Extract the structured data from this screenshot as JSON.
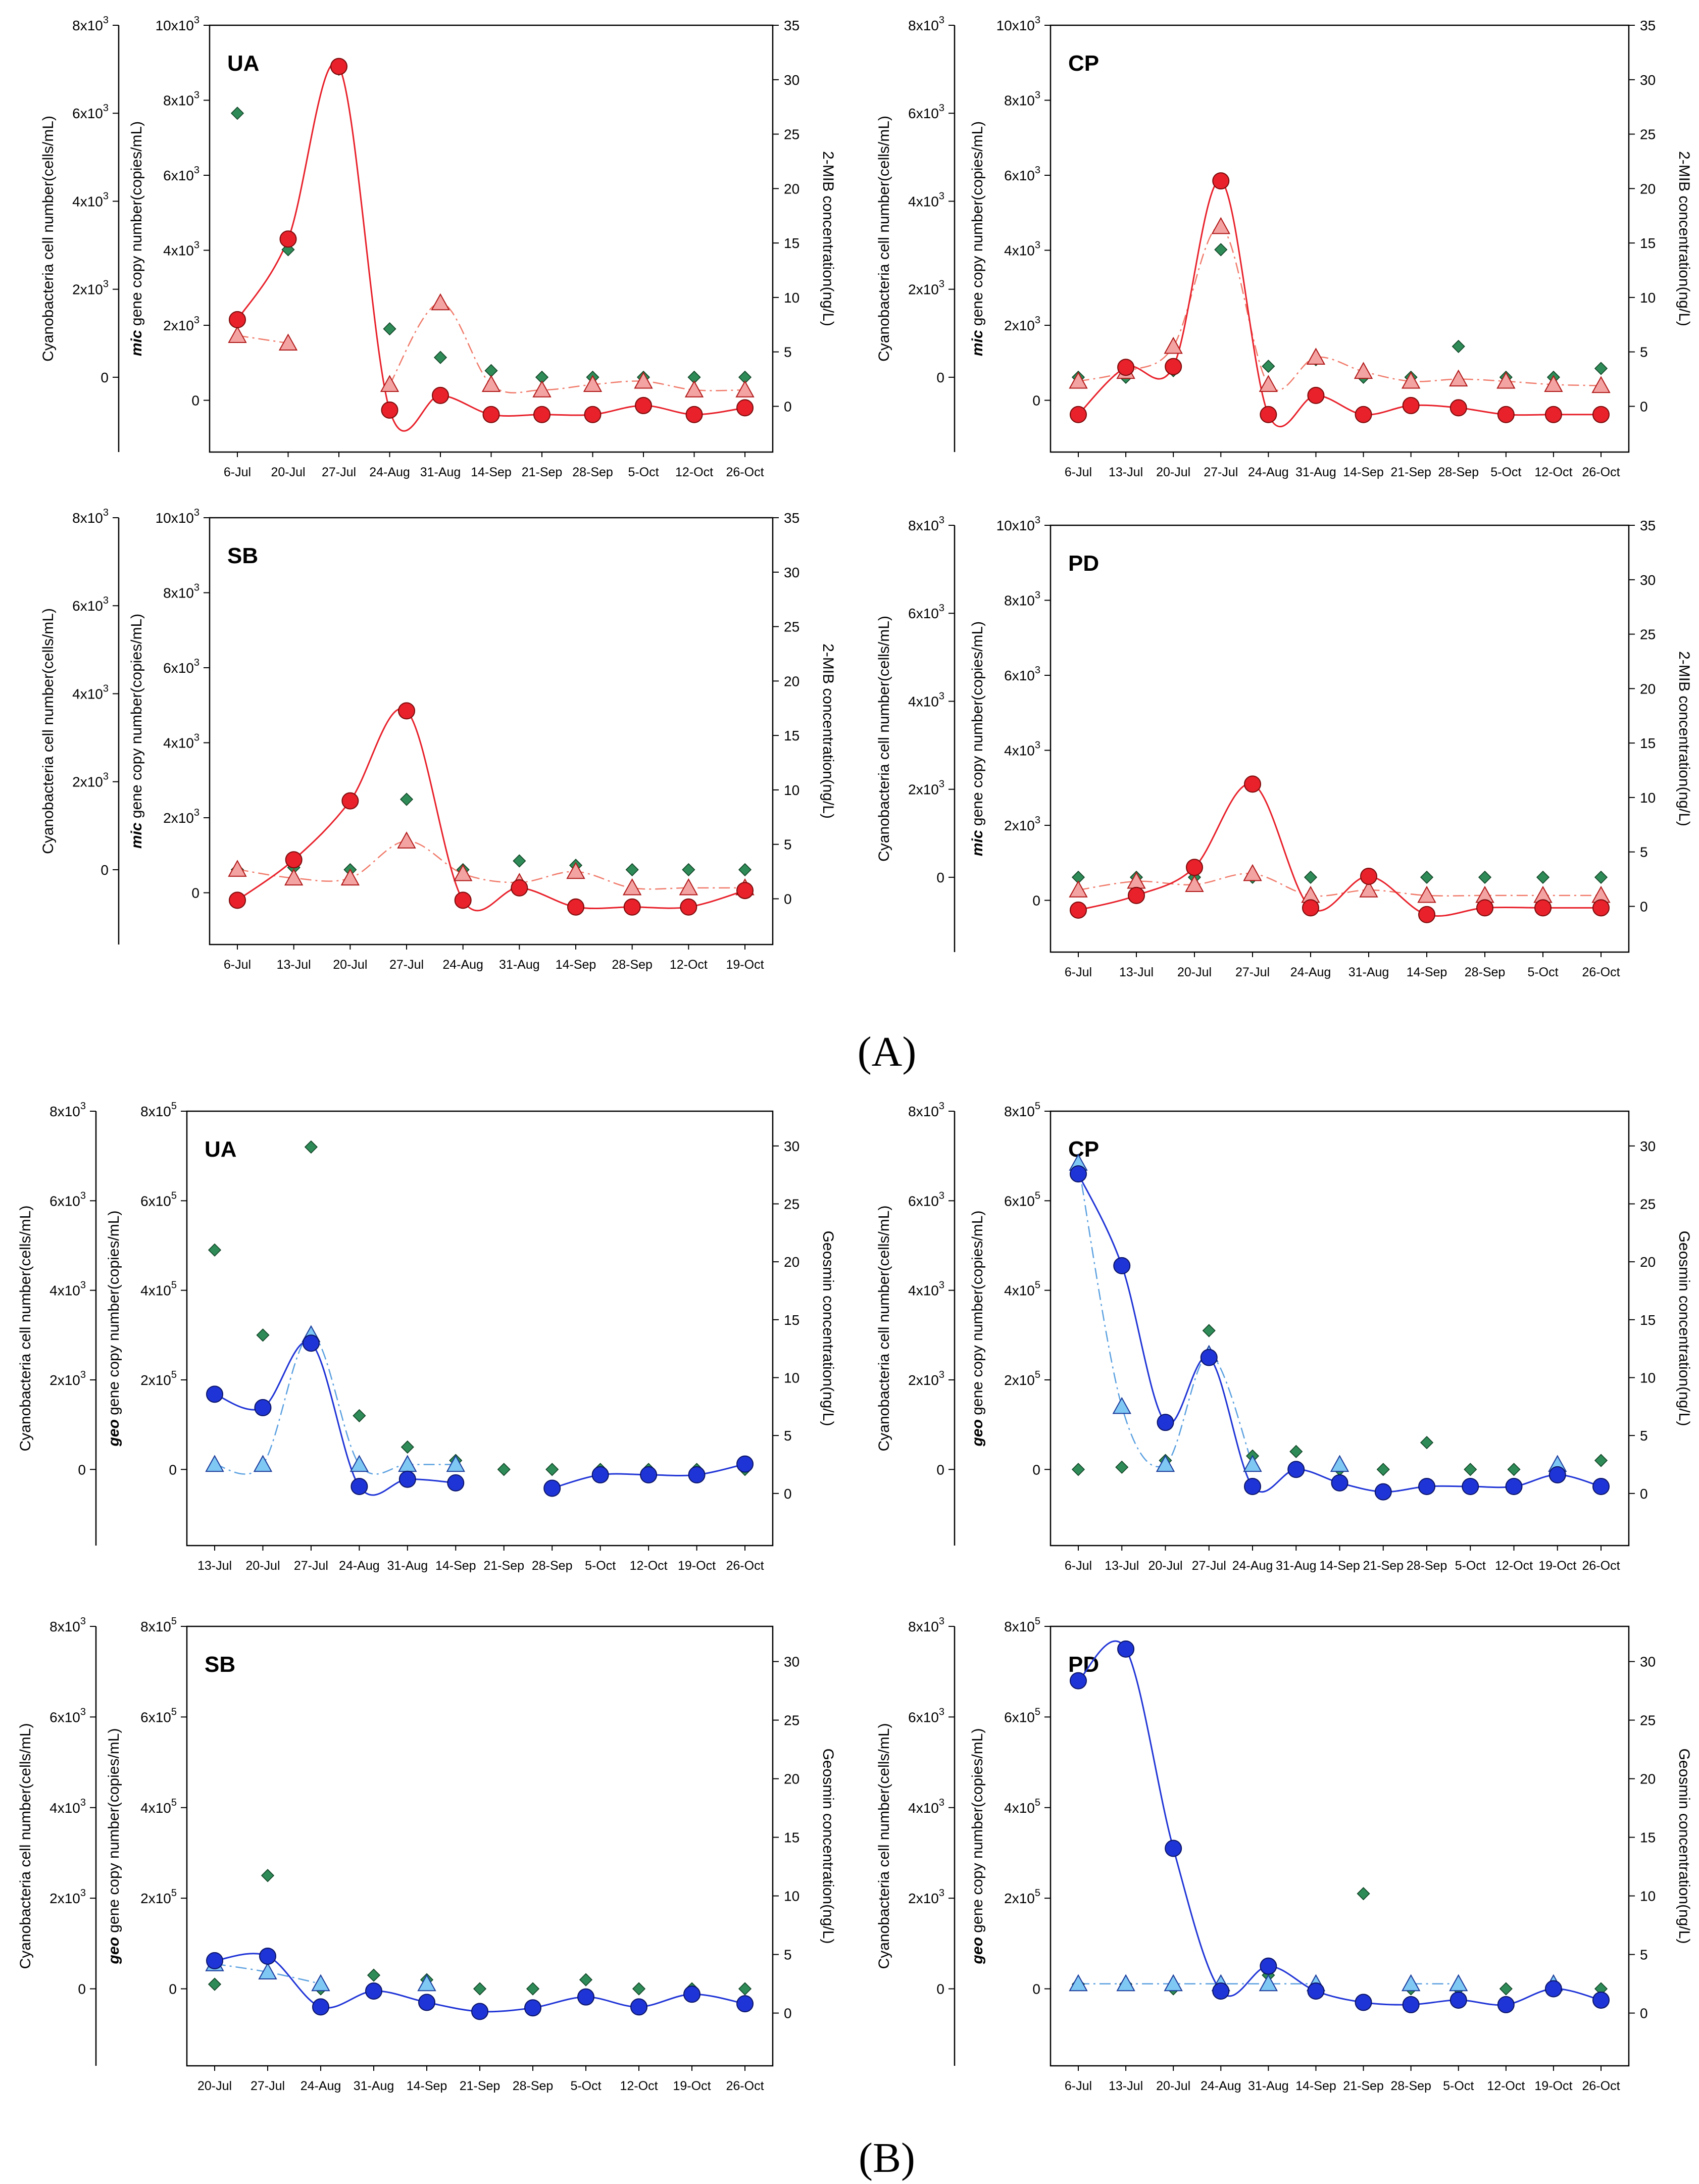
{
  "figure": {
    "panel_A_label": "(A)",
    "panel_B_label": "(B)",
    "colors": {
      "gene_mic": "#e8212b",
      "mib_triangle": "#f4a3a3",
      "gene_geo": "#1f34d6",
      "geosmin_triangle": "#7fc8f4",
      "cyanobacteria": "#2e8b57"
    }
  },
  "chart_data": [
    {
      "type": "line",
      "panel": "A",
      "title": "UA",
      "categories": [
        "6-Jul",
        "20-Jul",
        "27-Jul",
        "24-Aug",
        "31-Aug",
        "14-Sep",
        "21-Sep",
        "28-Sep",
        "5-Oct",
        "12-Oct",
        "26-Oct"
      ],
      "axes": {
        "left_outer": {
          "label": "Cyanobacteria cell number(cells/mL)",
          "ticks": [
            "0",
            "2x10³",
            "4x10³",
            "6x10³",
            "8x10³"
          ],
          "range": [
            -1700,
            8000
          ]
        },
        "left_inner": {
          "label_italic": "mic",
          "label_rest": " gene copy number(copies/mL)",
          "ticks": [
            "0",
            "2x10³",
            "4x10³",
            "6x10³",
            "8x10³",
            "10x10³"
          ],
          "range": [
            -1380,
            10000
          ]
        },
        "right": {
          "label": "2-MIB concentration(ng/L)",
          "ticks": [
            "0",
            "5",
            "10",
            "15",
            "20",
            "25",
            "30",
            "35"
          ],
          "range": [
            -4.2,
            35
          ]
        }
      },
      "series": [
        {
          "role": "gene",
          "axis": "left_inner",
          "marker": "circle",
          "values": [
            2150,
            4300,
            8900,
            -260,
            130,
            -380,
            -380,
            -380,
            -140,
            -380,
            -200
          ]
        },
        {
          "role": "concentration",
          "axis": "right",
          "marker": "triangle",
          "values": [
            6.5,
            5.8,
            null,
            2.0,
            9.5,
            2.0,
            1.5,
            2.0,
            2.3,
            1.5,
            1.5
          ]
        },
        {
          "role": "cyanobacteria",
          "axis": "left_outer",
          "marker": "diamond",
          "values": [
            6000,
            2900,
            7000,
            1100,
            450,
            150,
            0,
            0,
            0,
            0,
            0
          ]
        }
      ]
    },
    {
      "type": "line",
      "panel": "A",
      "title": "CP",
      "categories": [
        "6-Jul",
        "13-Jul",
        "20-Jul",
        "27-Jul",
        "24-Aug",
        "31-Aug",
        "14-Sep",
        "21-Sep",
        "28-Sep",
        "5-Oct",
        "12-Oct",
        "26-Oct"
      ],
      "axes": {
        "left_outer": {
          "label": "Cyanobacteria cell number(cells/mL)",
          "ticks": [
            "0",
            "2x10³",
            "4x10³",
            "6x10³",
            "8x10³"
          ],
          "range": [
            -1700,
            8000
          ]
        },
        "left_inner": {
          "label_italic": "mic",
          "label_rest": " gene copy number(copies/mL)",
          "ticks": [
            "0",
            "2x10³",
            "4x10³",
            "6x10³",
            "8x10³",
            "10x10³"
          ],
          "range": [
            -1380,
            10000
          ]
        },
        "right": {
          "label": "2-MIB concentration(ng/L)",
          "ticks": [
            "0",
            "5",
            "10",
            "15",
            "20",
            "25",
            "30",
            "35"
          ],
          "range": [
            -4.2,
            35
          ]
        }
      },
      "series": [
        {
          "role": "gene",
          "axis": "left_inner",
          "marker": "circle",
          "values": [
            -380,
            880,
            900,
            5850,
            -380,
            130,
            -380,
            -140,
            -200,
            -380,
            -380,
            -380
          ]
        },
        {
          "role": "concentration",
          "axis": "right",
          "marker": "triangle",
          "values": [
            2.3,
            3.2,
            5.5,
            16.5,
            2.0,
            4.5,
            3.2,
            2.3,
            2.5,
            2.3,
            2.0,
            1.9
          ]
        },
        {
          "role": "cyanobacteria",
          "axis": "left_outer",
          "marker": "diamond",
          "values": [
            0,
            0,
            150,
            2900,
            250,
            400,
            0,
            0,
            700,
            0,
            0,
            200
          ]
        }
      ]
    },
    {
      "type": "line",
      "panel": "A",
      "title": "SB",
      "categories": [
        "6-Jul",
        "13-Jul",
        "20-Jul",
        "27-Jul",
        "24-Aug",
        "31-Aug",
        "14-Sep",
        "28-Sep",
        "12-Oct",
        "19-Oct"
      ],
      "axes": {
        "left_outer": {
          "label": "Cyanobacteria cell number(cells/mL)",
          "ticks": [
            "0",
            "2x10³",
            "4x10³",
            "6x10³",
            "8x10³"
          ],
          "range": [
            -1700,
            8000
          ]
        },
        "left_inner": {
          "label_italic": "mic",
          "label_rest": " gene copy number(copies/mL)",
          "ticks": [
            "0",
            "2x10³",
            "4x10³",
            "6x10³",
            "8x10³",
            "10x10³"
          ],
          "range": [
            -1380,
            10000
          ]
        },
        "right": {
          "label": "2-MIB concentration(ng/L)",
          "ticks": [
            "0",
            "5",
            "10",
            "15",
            "20",
            "25",
            "30",
            "35"
          ],
          "range": [
            -4.2,
            35
          ]
        }
      },
      "series": [
        {
          "role": "gene",
          "axis": "left_inner",
          "marker": "circle",
          "values": [
            -200,
            880,
            2450,
            4850,
            -200,
            130,
            -380,
            -380,
            -380,
            60
          ]
        },
        {
          "role": "concentration",
          "axis": "right",
          "marker": "triangle",
          "values": [
            2.7,
            1.9,
            1.9,
            5.3,
            2.3,
            1.5,
            2.5,
            1.0,
            1.0,
            1.0
          ]
        },
        {
          "role": "cyanobacteria",
          "axis": "left_outer",
          "marker": "diamond",
          "values": [
            0,
            50,
            0,
            1600,
            0,
            200,
            100,
            0,
            0,
            0
          ]
        }
      ]
    },
    {
      "type": "line",
      "panel": "A",
      "title": "PD",
      "categories": [
        "6-Jul",
        "13-Jul",
        "20-Jul",
        "27-Jul",
        "24-Aug",
        "31-Aug",
        "14-Sep",
        "28-Sep",
        "5-Oct",
        "26-Oct"
      ],
      "axes": {
        "left_outer": {
          "label": "Cyanobacteria cell number(cells/mL)",
          "ticks": [
            "0",
            "2x10³",
            "4x10³",
            "6x10³",
            "8x10³"
          ],
          "range": [
            -1700,
            8000
          ]
        },
        "left_inner": {
          "label_italic": "mic",
          "label_rest": " gene copy number(copies/mL)",
          "ticks": [
            "0",
            "2x10³",
            "4x10³",
            "6x10³",
            "8x10³",
            "10x10³"
          ],
          "range": [
            -1380,
            10000
          ]
        },
        "right": {
          "label": "2-MIB concentration(ng/L)",
          "ticks": [
            "0",
            "5",
            "10",
            "15",
            "20",
            "25",
            "30",
            "35"
          ],
          "range": [
            -4.2,
            35
          ]
        }
      },
      "series": [
        {
          "role": "gene",
          "axis": "left_inner",
          "marker": "circle",
          "values": [
            -260,
            130,
            880,
            3100,
            -200,
            640,
            -380,
            -200,
            -200,
            -200
          ]
        },
        {
          "role": "concentration",
          "axis": "right",
          "marker": "triangle",
          "values": [
            1.5,
            2.3,
            2.0,
            3.0,
            1.0,
            1.5,
            1.0,
            1.0,
            1.0,
            1.0
          ]
        },
        {
          "role": "cyanobacteria",
          "axis": "left_outer",
          "marker": "diamond",
          "values": [
            0,
            0,
            0,
            0,
            0,
            0,
            0,
            0,
            0,
            0
          ]
        }
      ]
    },
    {
      "type": "line",
      "panel": "B",
      "title": "UA",
      "categories": [
        "13-Jul",
        "20-Jul",
        "27-Jul",
        "24-Aug",
        "31-Aug",
        "14-Sep",
        "21-Sep",
        "28-Sep",
        "5-Oct",
        "12-Oct",
        "19-Oct",
        "26-Oct"
      ],
      "axes": {
        "left_outer": {
          "label": "Cyanobacteria cell number(cells/mL)",
          "ticks": [
            "0",
            "2x10³",
            "4x10³",
            "6x10³",
            "8x10³"
          ],
          "range": [
            -1700,
            8000
          ]
        },
        "left_inner": {
          "label_italic": "geo",
          "label_rest": " gene copy number(copies/mL)",
          "ticks": [
            "0",
            "2x10⁵",
            "4x10⁵",
            "6x10⁵",
            "8x10⁵"
          ],
          "range": [
            -170000,
            800000
          ]
        },
        "right": {
          "label": "Geosmin concentration(ng/L)",
          "ticks": [
            "0",
            "5",
            "10",
            "15",
            "20",
            "25",
            "30"
          ],
          "range": [
            -4.5,
            33
          ]
        }
      },
      "series": [
        {
          "role": "gene",
          "axis": "left_inner",
          "marker": "circle",
          "values": [
            168000,
            138000,
            282000,
            -38000,
            -22000,
            -30000,
            null,
            -42000,
            -12000,
            -12000,
            -12000,
            12000
          ]
        },
        {
          "role": "concentration",
          "axis": "right",
          "marker": "triangle",
          "values": [
            2.5,
            2.5,
            13.7,
            2.5,
            2.5,
            2.5,
            null,
            null,
            null,
            null,
            null,
            null
          ]
        },
        {
          "role": "cyanobacteria",
          "axis": "left_outer",
          "marker": "diamond",
          "values": [
            4900,
            3000,
            7200,
            1200,
            500,
            200,
            0,
            0,
            0,
            0,
            0,
            0
          ]
        }
      ]
    },
    {
      "type": "line",
      "panel": "B",
      "title": "CP",
      "categories": [
        "6-Jul",
        "13-Jul",
        "20-Jul",
        "27-Jul",
        "24-Aug",
        "31-Aug",
        "14-Sep",
        "21-Sep",
        "28-Sep",
        "5-Oct",
        "12-Oct",
        "19-Oct",
        "26-Oct"
      ],
      "axes": {
        "left_outer": {
          "label": "Cyanobacteria cell number(cells/mL)",
          "ticks": [
            "0",
            "2x10³",
            "4x10³",
            "6x10³",
            "8x10³"
          ],
          "range": [
            -1700,
            8000
          ]
        },
        "left_inner": {
          "label_italic": "geo",
          "label_rest": " gene copy number(copies/mL)",
          "ticks": [
            "0",
            "2x10⁵",
            "4x10⁵",
            "6x10⁵",
            "8x10⁵"
          ],
          "range": [
            -170000,
            800000
          ]
        },
        "right": {
          "label": "Geosmin concentration(ng/L)",
          "ticks": [
            "0",
            "5",
            "10",
            "15",
            "20",
            "25",
            "30"
          ],
          "range": [
            -4.5,
            33
          ]
        }
      },
      "series": [
        {
          "role": "gene",
          "axis": "left_inner",
          "marker": "circle",
          "values": [
            660000,
            455000,
            105000,
            250000,
            -38000,
            0,
            -30000,
            -50000,
            -38000,
            -38000,
            -38000,
            -12000,
            -38000
          ]
        },
        {
          "role": "concentration",
          "axis": "right",
          "marker": "triangle",
          "values": [
            28.5,
            7.5,
            2.5,
            12.0,
            2.5,
            null,
            2.5,
            null,
            null,
            null,
            null,
            2.5,
            null
          ]
        },
        {
          "role": "cyanobacteria",
          "axis": "left_outer",
          "marker": "diamond",
          "values": [
            0,
            50,
            200,
            3100,
            300,
            400,
            0,
            0,
            600,
            0,
            0,
            0,
            200
          ]
        }
      ]
    },
    {
      "type": "line",
      "panel": "B",
      "title": "SB",
      "categories": [
        "20-Jul",
        "27-Jul",
        "24-Aug",
        "31-Aug",
        "14-Sep",
        "21-Sep",
        "28-Sep",
        "5-Oct",
        "12-Oct",
        "19-Oct",
        "26-Oct"
      ],
      "axes": {
        "left_outer": {
          "label": "Cyanobacteria cell number(cells/mL)",
          "ticks": [
            "0",
            "2x10³",
            "4x10³",
            "6x10³",
            "8x10³"
          ],
          "range": [
            -1700,
            8000
          ]
        },
        "left_inner": {
          "label_italic": "geo",
          "label_rest": " gene copy number(copies/mL)",
          "ticks": [
            "0",
            "2x10⁵",
            "4x10⁵",
            "6x10⁵",
            "8x10⁵"
          ],
          "range": [
            -170000,
            800000
          ]
        },
        "right": {
          "label": "Geosmin concentration(ng/L)",
          "ticks": [
            "0",
            "5",
            "10",
            "15",
            "20",
            "25",
            "30"
          ],
          "range": [
            -4.5,
            33
          ]
        }
      },
      "series": [
        {
          "role": "gene",
          "axis": "left_inner",
          "marker": "circle",
          "values": [
            62000,
            72000,
            -40000,
            -5000,
            -30000,
            -50000,
            -42000,
            -18000,
            -40000,
            -12000,
            -33000
          ]
        },
        {
          "role": "concentration",
          "axis": "right",
          "marker": "triangle",
          "values": [
            4.2,
            3.5,
            2.5,
            null,
            2.5,
            null,
            null,
            null,
            null,
            null,
            null
          ]
        },
        {
          "role": "cyanobacteria",
          "axis": "left_outer",
          "marker": "diamond",
          "values": [
            100,
            2500,
            0,
            300,
            200,
            0,
            0,
            200,
            0,
            0,
            0
          ]
        }
      ]
    },
    {
      "type": "line",
      "panel": "B",
      "title": "PD",
      "categories": [
        "6-Jul",
        "13-Jul",
        "20-Jul",
        "24-Aug",
        "31-Aug",
        "14-Sep",
        "21-Sep",
        "28-Sep",
        "5-Oct",
        "12-Oct",
        "19-Oct",
        "26-Oct"
      ],
      "axes": {
        "left_outer": {
          "label": "Cyanobacteria cell number(cells/mL)",
          "ticks": [
            "0",
            "2x10³",
            "4x10³",
            "6x10³",
            "8x10³"
          ],
          "range": [
            -1700,
            8000
          ]
        },
        "left_inner": {
          "label_italic": "geo",
          "label_rest": " gene copy number(copies/mL)",
          "ticks": [
            "0",
            "2x10⁵",
            "4x10⁵",
            "6x10⁵",
            "8x10⁵"
          ],
          "range": [
            -170000,
            800000
          ]
        },
        "right": {
          "label": "Geosmin concentration(ng/L)",
          "ticks": [
            "0",
            "5",
            "10",
            "15",
            "20",
            "25",
            "30"
          ],
          "range": [
            -4.5,
            33
          ]
        }
      },
      "series": [
        {
          "role": "gene",
          "axis": "left_inner",
          "marker": "circle",
          "values": [
            680000,
            750000,
            310000,
            -5000,
            50000,
            -5000,
            -30000,
            -35000,
            -25000,
            -35000,
            0,
            -25000
          ]
        },
        {
          "role": "concentration",
          "axis": "right",
          "marker": "triangle",
          "values": [
            2.5,
            2.5,
            2.5,
            2.5,
            2.5,
            2.5,
            null,
            2.5,
            2.5,
            null,
            2.5,
            null
          ]
        },
        {
          "role": "cyanobacteria",
          "axis": "left_outer",
          "marker": "diamond",
          "values": [
            100,
            100,
            0,
            0,
            300,
            0,
            2100,
            0,
            0,
            0,
            0,
            0
          ]
        }
      ]
    }
  ]
}
